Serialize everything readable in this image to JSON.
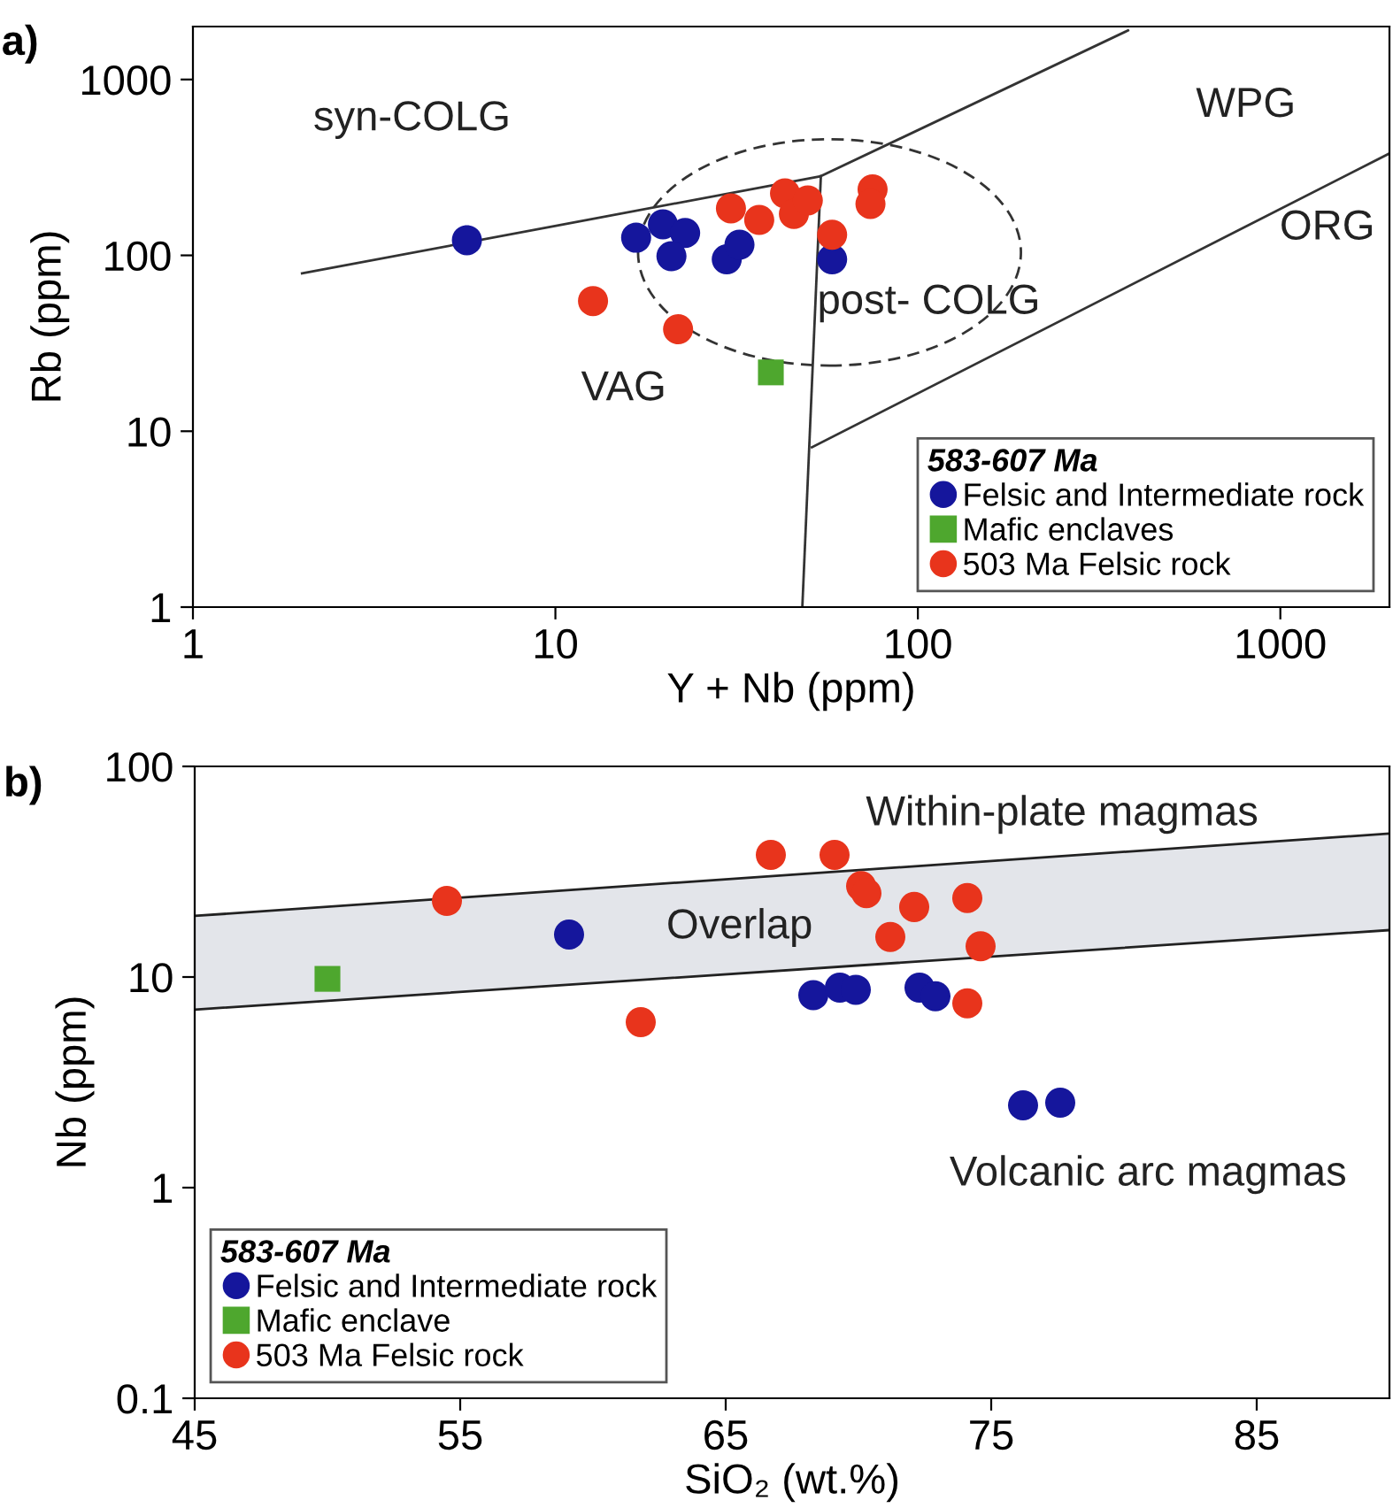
{
  "chart_data": [
    {
      "type": "scatter",
      "title": "a)",
      "xlabel": "Y + Nb (ppm)",
      "ylabel": "Rb (ppm)",
      "log": "xy",
      "xlim": [
        1,
        2000
      ],
      "ylim": [
        1,
        2000
      ],
      "xticks": [
        1,
        10,
        100,
        1000
      ],
      "yticks": [
        1,
        10,
        100,
        1000
      ],
      "grid": false,
      "legend": "bottom right",
      "legend_title": "583-607 Ma",
      "series": [
        {
          "type": "line",
          "color": "#333333",
          "line_style": "solid",
          "marker": "none",
          "x": [
            2.0,
            54,
            380
          ],
          "values": [
            79,
            282,
            1900
          ]
        },
        {
          "type": "line",
          "color": "#333333",
          "line_style": "solid",
          "marker": "none",
          "x": [
            54,
            48
          ],
          "values": [
            282,
            1
          ]
        },
        {
          "type": "line",
          "color": "#333333",
          "line_style": "solid",
          "marker": "none",
          "x": [
            51,
            2000
          ],
          "values": [
            8.1,
            380
          ]
        },
        {
          "name": "Felsic and Intermediate rock",
          "color": "#15169c",
          "marker": "circle",
          "x": [
            5.7,
            16.7,
            19.8,
            22.8,
            20.9,
            29.7,
            32.2,
            58
          ],
          "values": [
            122,
            126,
            150,
            134,
            99,
            95,
            115,
            95
          ]
        },
        {
          "name": "Mafic enclaves",
          "color": "#4ea72e",
          "marker": "square",
          "x": [
            39.3
          ],
          "values": [
            21.6
          ]
        },
        {
          "name": "503 Ma Felsic rock",
          "color": "#e8341c",
          "marker": "circle",
          "x": [
            12.7,
            21.8,
            30.5,
            36.5,
            43,
            45.5,
            49.7,
            58,
            75,
            74
          ],
          "values": [
            55,
            38,
            185,
            159,
            225,
            172,
            205,
            131,
            237,
            196
          ]
        }
      ],
      "annotations": [
        "syn-COLG",
        "WPG",
        "ORG",
        "post- COLG",
        "VAG"
      ]
    },
    {
      "type": "scatter",
      "title": "b)",
      "xlabel": "SiO₂ (wt.%)",
      "ylabel": "Nb (ppm)",
      "log": "y",
      "xlim": [
        45,
        90
      ],
      "ylim": [
        0.1,
        100
      ],
      "xticks": [
        45,
        55,
        65,
        75,
        85
      ],
      "yticks": [
        0.1,
        1,
        10,
        100
      ],
      "grid": false,
      "legend": "bottom left",
      "legend_title": "583-607 Ma",
      "series": [
        {
          "type": "line",
          "color": "#222222",
          "line_style": "solid",
          "marker": "none",
          "x": [
            45,
            90
          ],
          "values": [
            19.5,
            48
          ]
        },
        {
          "type": "line",
          "color": "#222222",
          "line_style": "solid",
          "marker": "none",
          "x": [
            45,
            90
          ],
          "values": [
            7.0,
            16.7
          ]
        },
        {
          "name": "Felsic and Intermediate rock",
          "color": "#15169c",
          "marker": "circle",
          "x": [
            59.1,
            68.3,
            69.3,
            69.9,
            72.3,
            72.9,
            76.2,
            77.6
          ],
          "values": [
            15.9,
            8.2,
            8.9,
            8.7,
            8.9,
            8.1,
            2.46,
            2.53
          ]
        },
        {
          "name": "Mafic enclave",
          "color": "#4ea72e",
          "marker": "square",
          "x": [
            50.0
          ],
          "values": [
            9.8
          ]
        },
        {
          "name": "503 Ma Felsic rock",
          "color": "#e8341c",
          "marker": "circle",
          "x": [
            54.5,
            66.7,
            69.1,
            70.1,
            70.3,
            72.1,
            71.2,
            74.1,
            74.6,
            74.1,
            61.8
          ],
          "values": [
            23,
            38,
            38,
            27,
            25,
            21.5,
            15.5,
            23.7,
            14,
            7.5,
            6.1
          ]
        }
      ],
      "annotations": [
        "Within-plate magmas",
        "Overlap",
        "Volcanic arc magmas"
      ]
    }
  ]
}
